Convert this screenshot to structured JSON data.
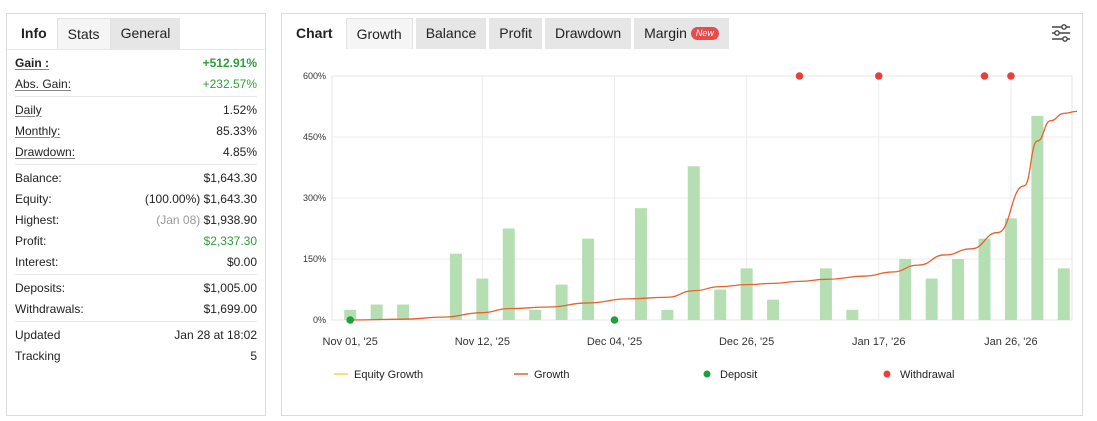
{
  "left_tabs": [
    {
      "label": "Info"
    },
    {
      "label": "Stats"
    },
    {
      "label": "General"
    }
  ],
  "stats": {
    "gain": {
      "label": "Gain :",
      "value": "+512.91%"
    },
    "abs_gain": {
      "label": "Abs. Gain:",
      "value": "+232.57%"
    },
    "daily": {
      "label": "Daily",
      "value": "1.52%"
    },
    "monthly": {
      "label": "Monthly:",
      "value": "85.33%"
    },
    "drawdown": {
      "label": "Drawdown:",
      "value": "4.85%"
    },
    "balance": {
      "label": "Balance:",
      "value": "$1,643.30"
    },
    "equity": {
      "label": "Equity:",
      "note": "(100.00%)",
      "value": "$1,643.30"
    },
    "highest": {
      "label": "Highest:",
      "note": "(Jan 08)",
      "value": "$1,938.90"
    },
    "profit": {
      "label": "Profit:",
      "value": "$2,337.30"
    },
    "interest": {
      "label": "Interest:",
      "value": "$0.00"
    },
    "deposits": {
      "label": "Deposits:",
      "value": "$1,005.00"
    },
    "withdrawals": {
      "label": "Withdrawals:",
      "value": "$1,699.00"
    },
    "updated": {
      "label": "Updated",
      "value": "Jan 28 at 18:02"
    },
    "tracking": {
      "label": "Tracking",
      "value": "5"
    }
  },
  "right_tabs": [
    {
      "label": "Chart"
    },
    {
      "label": "Growth"
    },
    {
      "label": "Balance"
    },
    {
      "label": "Profit"
    },
    {
      "label": "Drawdown"
    },
    {
      "label": "Margin",
      "badge": "New"
    }
  ],
  "colors": {
    "bar": "#b5dfb3",
    "growth_line": "#e8612c",
    "equity_line": "#f3d34a",
    "deposit": "#1aa33a",
    "withdrawal": "#e8403a"
  },
  "chart_data": {
    "type": "bar",
    "x_ticks": [
      "Nov 01, '25",
      "Nov 12, '25",
      "Dec 04, '25",
      "Dec 26, '25",
      "Jan 17, '26",
      "Jan 26, '26"
    ],
    "y_ticks": [
      "0%",
      "150%",
      "300%",
      "450%",
      "600%"
    ],
    "ylim": [
      0,
      600
    ],
    "grid": true,
    "bars": [
      {
        "i": 0,
        "v": 25
      },
      {
        "i": 1,
        "v": 38
      },
      {
        "i": 2,
        "v": 38
      },
      {
        "i": 4,
        "v": 163
      },
      {
        "i": 5,
        "v": 102
      },
      {
        "i": 6,
        "v": 225
      },
      {
        "i": 7,
        "v": 25
      },
      {
        "i": 8,
        "v": 87
      },
      {
        "i": 9,
        "v": 200
      },
      {
        "i": 11,
        "v": 275
      },
      {
        "i": 12,
        "v": 25
      },
      {
        "i": 13,
        "v": 378
      },
      {
        "i": 14,
        "v": 75
      },
      {
        "i": 15,
        "v": 127
      },
      {
        "i": 16,
        "v": 50
      },
      {
        "i": 18,
        "v": 127
      },
      {
        "i": 19,
        "v": 25
      },
      {
        "i": 21,
        "v": 150
      },
      {
        "i": 22,
        "v": 102
      },
      {
        "i": 23,
        "v": 150
      },
      {
        "i": 24,
        "v": 200
      },
      {
        "i": 25,
        "v": 250
      },
      {
        "i": 26,
        "v": 502
      },
      {
        "i": 27,
        "v": 127
      }
    ],
    "growth": [
      [
        0,
        0
      ],
      [
        2,
        2
      ],
      [
        3.5,
        7
      ],
      [
        5,
        18
      ],
      [
        6,
        28
      ],
      [
        7.5,
        32
      ],
      [
        9,
        42
      ],
      [
        10.5,
        52
      ],
      [
        12,
        56
      ],
      [
        13,
        72
      ],
      [
        14,
        82
      ],
      [
        15,
        87
      ],
      [
        16,
        90
      ],
      [
        17,
        95
      ],
      [
        18,
        100
      ],
      [
        19.5,
        108
      ],
      [
        20.5,
        118
      ],
      [
        21.5,
        135
      ],
      [
        22.5,
        160
      ],
      [
        23.5,
        175
      ],
      [
        24.5,
        215
      ],
      [
        25.5,
        330
      ],
      [
        26,
        440
      ],
      [
        26.5,
        490
      ],
      [
        27,
        508
      ],
      [
        27.5,
        513
      ]
    ],
    "deposits": [
      {
        "i": 0,
        "v": 0
      },
      {
        "i": 10,
        "v": 0
      }
    ],
    "withdrawals": [
      {
        "i": 17,
        "v": 600
      },
      {
        "i": 20,
        "v": 600
      },
      {
        "i": 24,
        "v": 600
      },
      {
        "i": 25,
        "v": 600
      }
    ],
    "legend": [
      {
        "name": "Equity Growth",
        "kind": "line",
        "color": "#f3d34a"
      },
      {
        "name": "Growth",
        "kind": "line",
        "color": "#e8612c"
      },
      {
        "name": "Deposit",
        "kind": "dot",
        "color": "#1aa33a"
      },
      {
        "name": "Withdrawal",
        "kind": "dot",
        "color": "#e8403a"
      }
    ]
  }
}
